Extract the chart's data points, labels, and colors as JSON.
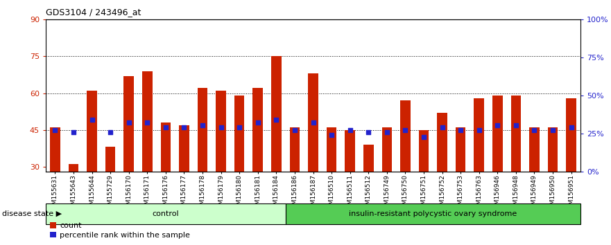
{
  "title": "GDS3104 / 243496_at",
  "samples": [
    "GSM155631",
    "GSM155643",
    "GSM155644",
    "GSM155729",
    "GSM156170",
    "GSM156171",
    "GSM156176",
    "GSM156177",
    "GSM156178",
    "GSM156179",
    "GSM156180",
    "GSM156181",
    "GSM156184",
    "GSM156186",
    "GSM156187",
    "GSM156510",
    "GSM156511",
    "GSM156512",
    "GSM156749",
    "GSM156750",
    "GSM156751",
    "GSM156752",
    "GSM156753",
    "GSM156763",
    "GSM156946",
    "GSM156948",
    "GSM156949",
    "GSM156950",
    "GSM156951"
  ],
  "count_values": [
    46,
    31,
    61,
    38,
    67,
    69,
    48,
    47,
    62,
    61,
    59,
    62,
    75,
    46,
    68,
    46,
    45,
    39,
    46,
    57,
    45,
    52,
    46,
    58,
    59,
    59,
    46,
    46,
    58
  ],
  "percentile_values": [
    45,
    44,
    49,
    44,
    48,
    48,
    46,
    46,
    47,
    46,
    46,
    48,
    49,
    45,
    48,
    43,
    45,
    44,
    44,
    45,
    42,
    46,
    45,
    45,
    47,
    47,
    45,
    45,
    46
  ],
  "control_count": 13,
  "disease_count": 16,
  "control_label": "control",
  "disease_label": "insulin-resistant polycystic ovary syndrome",
  "disease_state_label": "disease state",
  "ylim_left": [
    28,
    90
  ],
  "ylim_right": [
    0,
    100
  ],
  "yticks_left": [
    30,
    45,
    60,
    75,
    90
  ],
  "yticks_right": [
    0,
    25,
    50,
    75,
    100
  ],
  "bar_color": "#cc2200",
  "percentile_color": "#2222cc",
  "control_bg": "#ccffcc",
  "disease_bg": "#55cc55",
  "bar_width": 0.55,
  "legend_count_label": "count",
  "legend_percentile_label": "percentile rank within the sample"
}
